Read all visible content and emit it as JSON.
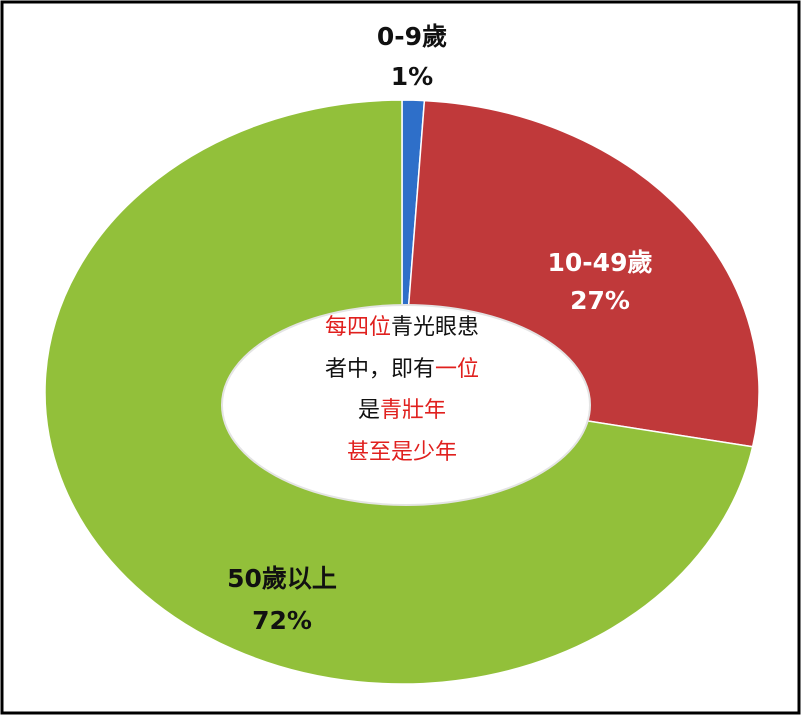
{
  "chart_data": {
    "type": "pie",
    "categories": [
      "0-9歲",
      "10-49歲",
      "50歲以上"
    ],
    "values": [
      1,
      27,
      72
    ],
    "value_labels": [
      "1%",
      "27%",
      "72%"
    ],
    "colors": [
      "#2e6fc9",
      "#c0393a",
      "#92c03a"
    ],
    "label_colors": [
      "#111111",
      "#ffffff",
      "#111111"
    ],
    "center_text": [
      [
        {
          "text": "每四位",
          "color": "#e0201e"
        },
        {
          "text": "青光眼患",
          "color": "#111111"
        }
      ],
      [
        {
          "text": "者中，即有",
          "color": "#111111"
        },
        {
          "text": "一位",
          "color": "#e0201e"
        }
      ],
      [
        {
          "text": "是",
          "color": "#111111"
        },
        {
          "text": "青壯年",
          "color": "#e0201e"
        }
      ],
      [
        {
          "text": "甚至是少年",
          "color": "#e0201e"
        }
      ]
    ]
  }
}
